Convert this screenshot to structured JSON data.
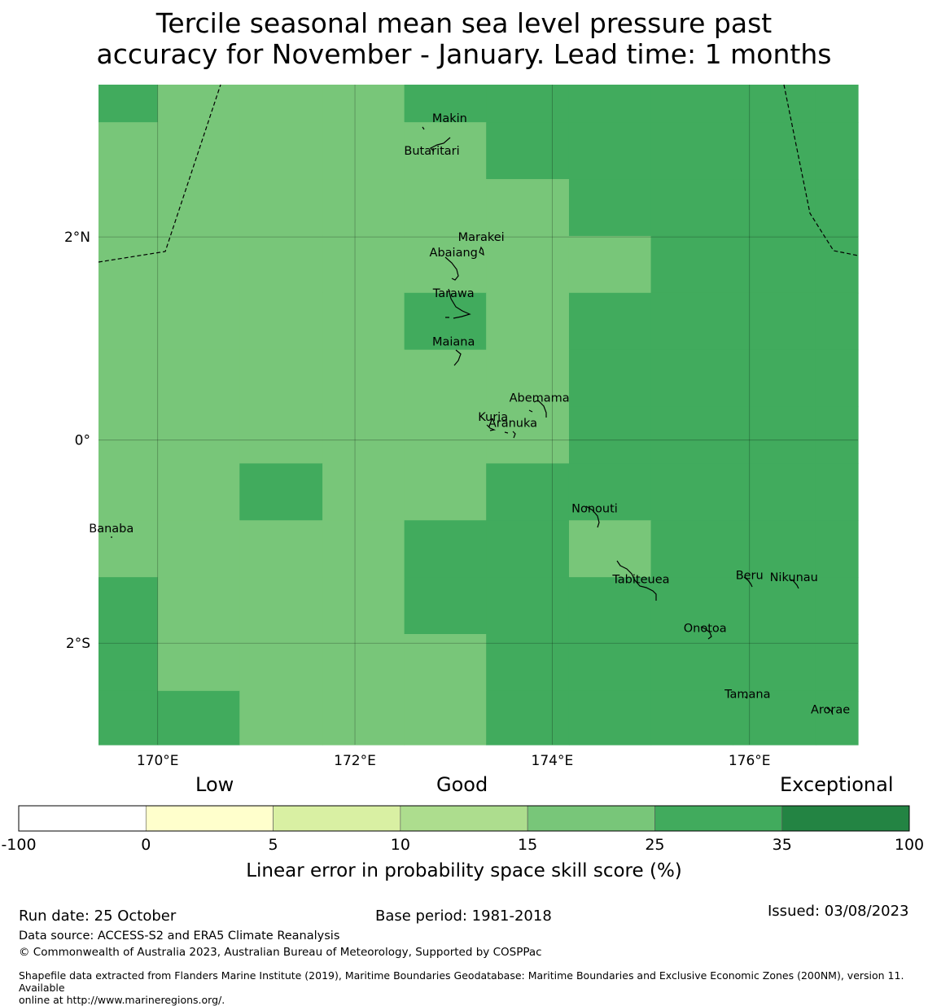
{
  "title": {
    "line1": "Tercile seasonal mean sea level pressure past",
    "line2": "accuracy for November - January. Lead time: 1 months"
  },
  "map": {
    "lon_range": [
      169.4,
      177.1
    ],
    "lat_range": [
      -3.0,
      3.5
    ],
    "lon_ticks": [
      {
        "value": 170,
        "label": "170°E"
      },
      {
        "value": 172,
        "label": "172°E"
      },
      {
        "value": 174,
        "label": "174°E"
      },
      {
        "value": 176,
        "label": "176°E"
      }
    ],
    "lat_ticks": [
      {
        "value": 2,
        "label": "2°N"
      },
      {
        "value": 0,
        "label": "0°"
      },
      {
        "value": -2,
        "label": "2°S"
      }
    ],
    "grid_lon_edges": [
      169.4,
      170.0,
      170.83,
      171.67,
      172.5,
      173.33,
      174.17,
      175.0,
      175.83,
      176.67,
      177.1
    ],
    "grid_lat_edges": [
      3.5,
      3.13,
      2.57,
      2.01,
      1.45,
      0.89,
      0.33,
      -0.23,
      -0.79,
      -1.35,
      -1.91,
      -2.47,
      -3.0
    ],
    "cell_categories": [
      [
        "35",
        "25",
        "25",
        "25",
        "35",
        "35",
        "35",
        "35",
        "35",
        "35"
      ],
      [
        "25",
        "25",
        "25",
        "25",
        "25",
        "35",
        "35",
        "35",
        "35",
        "35"
      ],
      [
        "25",
        "25",
        "25",
        "25",
        "25",
        "25",
        "35",
        "35",
        "35",
        "35"
      ],
      [
        "25",
        "25",
        "25",
        "25",
        "25",
        "25",
        "25",
        "35",
        "35",
        "35"
      ],
      [
        "25",
        "25",
        "25",
        "25",
        "35",
        "25",
        "35",
        "35",
        "35",
        "35"
      ],
      [
        "25",
        "25",
        "25",
        "25",
        "25",
        "25",
        "35",
        "35",
        "35",
        "35"
      ],
      [
        "25",
        "25",
        "25",
        "25",
        "25",
        "25",
        "35",
        "35",
        "35",
        "35"
      ],
      [
        "25",
        "25",
        "35",
        "25",
        "25",
        "35",
        "35",
        "35",
        "35",
        "35"
      ],
      [
        "25",
        "25",
        "25",
        "25",
        "35",
        "35",
        "25",
        "35",
        "35",
        "35"
      ],
      [
        "35",
        "25",
        "25",
        "25",
        "35",
        "35",
        "35",
        "35",
        "35",
        "35"
      ],
      [
        "35",
        "25",
        "25",
        "25",
        "25",
        "35",
        "35",
        "35",
        "35",
        "35"
      ],
      [
        "35",
        "35",
        "25",
        "25",
        "25",
        "35",
        "35",
        "35",
        "35",
        "35"
      ]
    ],
    "places": [
      {
        "name": "Makin",
        "lon": 172.96,
        "lat": 3.17
      },
      {
        "name": "Butaritari",
        "lon": 172.78,
        "lat": 2.85
      },
      {
        "name": "Marakei",
        "lon": 173.28,
        "lat": 2.0
      },
      {
        "name": "Abaiang",
        "lon": 173.0,
        "lat": 1.85
      },
      {
        "name": "Tarawa",
        "lon": 173.0,
        "lat": 1.45
      },
      {
        "name": "Maiana",
        "lon": 173.0,
        "lat": 0.97
      },
      {
        "name": "Abemama",
        "lon": 173.87,
        "lat": 0.42
      },
      {
        "name": "Kuria",
        "lon": 173.4,
        "lat": 0.23
      },
      {
        "name": "Aranuka",
        "lon": 173.6,
        "lat": 0.17
      },
      {
        "name": "Nonouti",
        "lon": 174.43,
        "lat": -0.67
      },
      {
        "name": "Banaba",
        "lon": 169.53,
        "lat": -0.87
      },
      {
        "name": "Beru",
        "lon": 176.0,
        "lat": -1.33
      },
      {
        "name": "Nikunau",
        "lon": 176.45,
        "lat": -1.35
      },
      {
        "name": "Tabiteuea",
        "lon": 174.9,
        "lat": -1.37
      },
      {
        "name": "Onotoa",
        "lon": 175.55,
        "lat": -1.85
      },
      {
        "name": "Tamana",
        "lon": 175.98,
        "lat": -2.5
      },
      {
        "name": "Arorae",
        "lon": 176.82,
        "lat": -2.65
      }
    ]
  },
  "legend": {
    "categories": [
      "Low",
      "Good",
      "Exceptional"
    ],
    "bins": [
      {
        "from": -100,
        "to": 0,
        "color": "#ffffff"
      },
      {
        "from": 0,
        "to": 5,
        "color": "#ffffcc"
      },
      {
        "from": 5,
        "to": 10,
        "color": "#d9f0a3"
      },
      {
        "from": 10,
        "to": 15,
        "color": "#addd8e"
      },
      {
        "from": 15,
        "to": 25,
        "color": "#78c679"
      },
      {
        "from": 25,
        "to": 35,
        "color": "#41ab5d"
      },
      {
        "from": 35,
        "to": 100,
        "color": "#238443"
      }
    ],
    "tick_labels": [
      "-100",
      "0",
      "5",
      "10",
      "15",
      "25",
      "35",
      "100"
    ],
    "label": "Linear error in probability space skill score (%)"
  },
  "colors": {
    "25": "#78c679",
    "35": "#41ab5d"
  },
  "footer": {
    "run_date": "Run date: 25 October",
    "base_period": "Base period: 1981-2018",
    "issued": "Issued: 03/08/2023",
    "data_source": "Data source: ACCESS-S2 and ERA5 Climate Reanalysis",
    "copyright": "© Commonwealth of Australia 2023, Australian Bureau of Meteorology, Supported by COSPPac",
    "shapefile_line1": "Shapefile data extracted from Flanders Marine Institute (2019), Maritime Boundaries Geodatabase: Maritime Boundaries and Exclusive Economic Zones (200NM), version 11. Available",
    "shapefile_line2": "online at http://www.marineregions.org/."
  }
}
